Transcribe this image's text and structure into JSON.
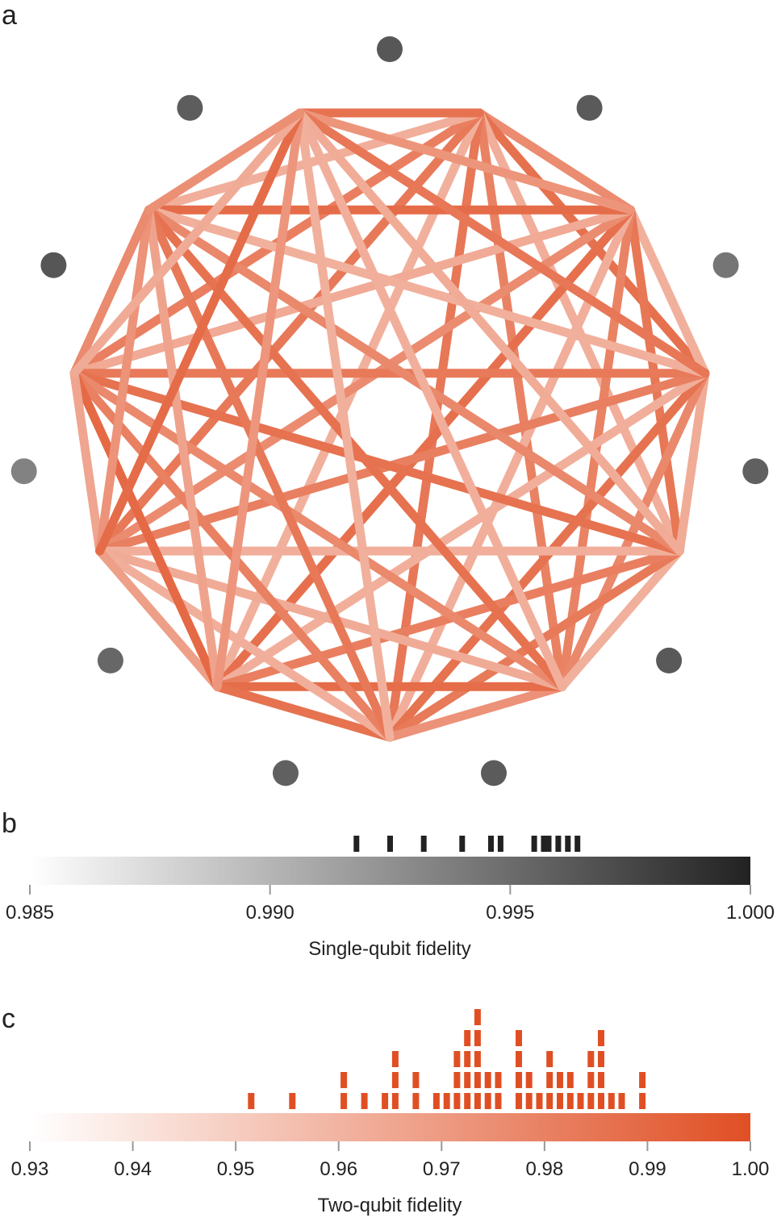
{
  "panels": {
    "a": "a",
    "b": "b",
    "c": "c"
  },
  "chart_data": [
    {
      "panel": "a",
      "type": "network",
      "node_count": 11,
      "edges": "all-to-all",
      "node_color_scale": "single-qubit fidelity (gray)",
      "edge_color_scale": "two-qubit fidelity (orange)",
      "node_fidelity": [
        0.9964,
        0.9962,
        0.9944,
        0.9958,
        0.9963,
        0.9961,
        0.9958,
        0.9953,
        0.9935,
        0.9965,
        0.996
      ]
    },
    {
      "panel": "b",
      "type": "strip",
      "xlabel": "Single-qubit fidelity",
      "xlim": [
        0.985,
        1.0
      ],
      "ticks": [
        "0.985",
        "0.990",
        "0.995",
        "1.000"
      ],
      "tick_values": [
        0.985,
        0.99,
        0.995,
        1.0
      ],
      "colorbar": [
        "#ffffff",
        "#222222"
      ],
      "values": [
        0.9918,
        0.9925,
        0.9932,
        0.994,
        0.9946,
        0.9948,
        0.9955,
        0.9957,
        0.9958,
        0.996,
        0.9962,
        0.9964
      ]
    },
    {
      "panel": "c",
      "type": "histogram",
      "xlabel": "Two-qubit fidelity",
      "xlim": [
        0.93,
        1.0
      ],
      "ticks": [
        "0.93",
        "0.94",
        "0.95",
        "0.96",
        "0.97",
        "0.98",
        "0.99",
        "1.00"
      ],
      "tick_values": [
        0.93,
        0.94,
        0.95,
        0.96,
        0.97,
        0.98,
        0.99,
        1.0
      ],
      "colorbar": [
        "#ffffff",
        "#e04f24"
      ],
      "bins": [
        {
          "x": 0.9515,
          "count": 1
        },
        {
          "x": 0.9555,
          "count": 1
        },
        {
          "x": 0.9605,
          "count": 2
        },
        {
          "x": 0.9625,
          "count": 1
        },
        {
          "x": 0.9645,
          "count": 1
        },
        {
          "x": 0.9655,
          "count": 3
        },
        {
          "x": 0.9675,
          "count": 2
        },
        {
          "x": 0.9695,
          "count": 1
        },
        {
          "x": 0.9705,
          "count": 1
        },
        {
          "x": 0.9715,
          "count": 3
        },
        {
          "x": 0.9725,
          "count": 4
        },
        {
          "x": 0.9735,
          "count": 5
        },
        {
          "x": 0.9745,
          "count": 2
        },
        {
          "x": 0.9755,
          "count": 2
        },
        {
          "x": 0.9775,
          "count": 4
        },
        {
          "x": 0.9785,
          "count": 2
        },
        {
          "x": 0.9795,
          "count": 1
        },
        {
          "x": 0.9805,
          "count": 3
        },
        {
          "x": 0.9815,
          "count": 2
        },
        {
          "x": 0.9825,
          "count": 2
        },
        {
          "x": 0.9835,
          "count": 1
        },
        {
          "x": 0.9845,
          "count": 3
        },
        {
          "x": 0.9855,
          "count": 4
        },
        {
          "x": 0.9865,
          "count": 1
        },
        {
          "x": 0.9875,
          "count": 1
        },
        {
          "x": 0.9895,
          "count": 2
        }
      ]
    }
  ]
}
